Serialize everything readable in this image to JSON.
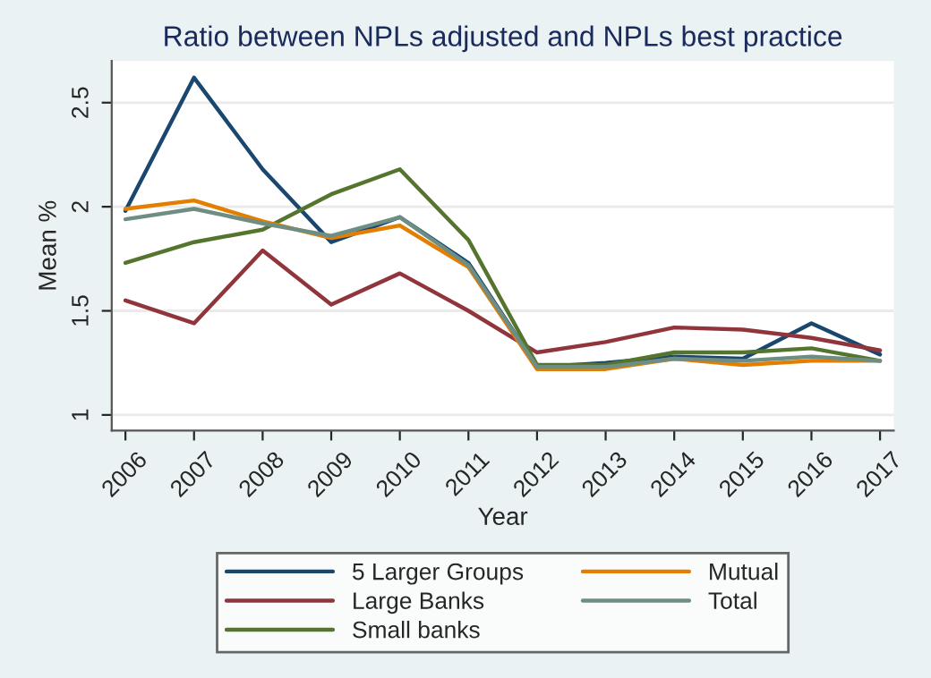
{
  "chart_data": {
    "type": "line",
    "title": "Ratio between NPLs adjusted and NPLs best practice",
    "xlabel": "Year",
    "ylabel": "Mean %",
    "x": [
      2006,
      2007,
      2008,
      2009,
      2010,
      2011,
      2012,
      2013,
      2014,
      2015,
      2016,
      2017
    ],
    "series": [
      {
        "name": "5 Larger Groups",
        "color": "#1a476f",
        "values": [
          1.98,
          2.62,
          2.18,
          1.83,
          1.95,
          1.73,
          1.23,
          1.25,
          1.28,
          1.27,
          1.44,
          1.29
        ]
      },
      {
        "name": "Large Banks",
        "color": "#90353b",
        "values": [
          1.55,
          1.44,
          1.79,
          1.53,
          1.68,
          1.5,
          1.3,
          1.35,
          1.42,
          1.41,
          1.37,
          1.31
        ]
      },
      {
        "name": "Small banks",
        "color": "#55752f",
        "values": [
          1.73,
          1.83,
          1.89,
          2.06,
          2.18,
          1.84,
          1.24,
          1.24,
          1.3,
          1.3,
          1.32,
          1.26
        ]
      },
      {
        "name": "Mutual",
        "color": "#e37e00",
        "values": [
          1.99,
          2.03,
          1.93,
          1.85,
          1.91,
          1.71,
          1.22,
          1.22,
          1.27,
          1.24,
          1.26,
          1.26
        ]
      },
      {
        "name": "Total",
        "color": "#6e8e84",
        "values": [
          1.94,
          1.99,
          1.92,
          1.86,
          1.95,
          1.72,
          1.23,
          1.23,
          1.27,
          1.26,
          1.28,
          1.26
        ]
      }
    ],
    "xlim": [
      2005.8,
      2017.2
    ],
    "xticks": [
      2006,
      2007,
      2008,
      2009,
      2010,
      2011,
      2012,
      2013,
      2014,
      2015,
      2016,
      2017
    ],
    "ylim": [
      0.925,
      2.7
    ],
    "yticks": [
      1,
      1.5,
      2,
      2.5
    ],
    "grid": "y",
    "legend": "bottom",
    "marker": "none",
    "line_style": "solid"
  }
}
